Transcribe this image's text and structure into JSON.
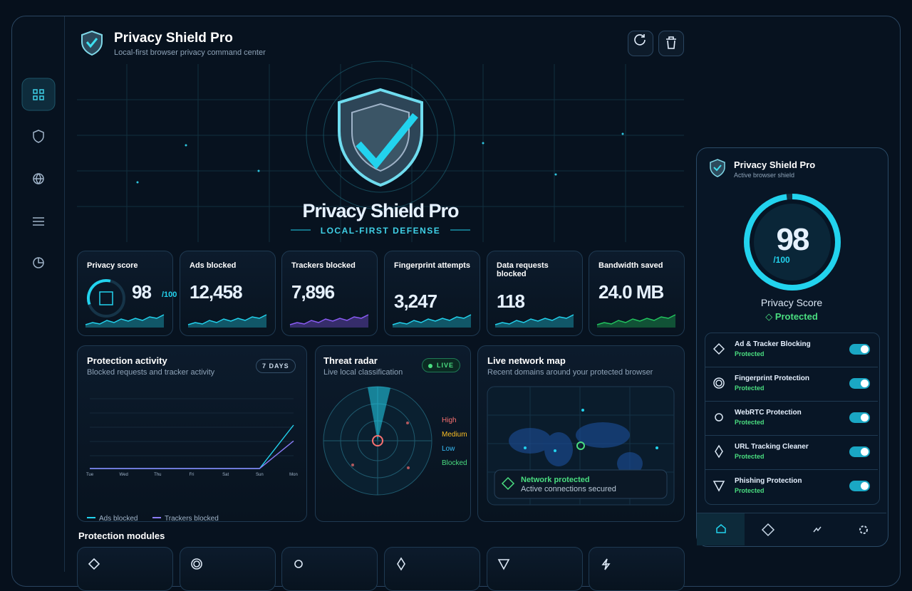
{
  "app": {
    "title": "Privacy Shield Pro",
    "subtitle": "Local-first browser privacy command center"
  },
  "hero": {
    "title": "Privacy Shield Pro",
    "tagline": "LOCAL-FIRST DEFENSE"
  },
  "stats": [
    {
      "label": "Privacy score",
      "value": 98,
      "unit": "/100"
    },
    {
      "label": "Ads blocked",
      "value": "12,458"
    },
    {
      "label": "Trackers blocked",
      "value": "7,896"
    },
    {
      "label": "Fingerprint attempts",
      "value": "3,247"
    },
    {
      "label": "Data requests blocked",
      "value": "118"
    },
    {
      "label": "Bandwidth saved",
      "value": "24.0 MB"
    }
  ],
  "activity": {
    "title": "Protection activity",
    "subtitle": "Blocked requests and tracker activity",
    "range": "7 DAYS",
    "categories": [
      "Tue",
      "Wed",
      "Thu",
      "Fri",
      "Sat",
      "Sun",
      "Mon"
    ],
    "series": [
      {
        "name": "Ads blocked",
        "color": "#22d3ee",
        "values": [
          0,
          0,
          0,
          0,
          0,
          0,
          12458
        ]
      },
      {
        "name": "Trackers blocked",
        "color": "#8b7cf6",
        "values": [
          0,
          0,
          0,
          0,
          0,
          0,
          7896
        ]
      }
    ]
  },
  "radar": {
    "title": "Threat radar",
    "subtitle": "Live local classification",
    "badge": "LIVE",
    "legend": [
      {
        "label": "High",
        "color": "#f87171"
      },
      {
        "label": "Medium",
        "color": "#fbbf24"
      },
      {
        "label": "Low",
        "color": "#38bdf8"
      },
      {
        "label": "Blocked",
        "color": "#4ade80"
      }
    ]
  },
  "network": {
    "title": "Live network map",
    "subtitle": "Recent domains around your protected browser",
    "status": "Network protected",
    "status_detail": "Active connections secured"
  },
  "modules": {
    "title": "Protection modules"
  },
  "popup": {
    "title": "Privacy Shield Pro",
    "subtitle": "Active browser shield",
    "score": 98,
    "score_max": "/100",
    "score_label": "Privacy Score",
    "status": "Protected",
    "items": [
      {
        "name": "Ad & Tracker Blocking",
        "status": "Protected"
      },
      {
        "name": "Fingerprint Protection",
        "status": "Protected"
      },
      {
        "name": "WebRTC Protection",
        "status": "Protected"
      },
      {
        "name": "URL Tracking Cleaner",
        "status": "Protected"
      },
      {
        "name": "Phishing Protection",
        "status": "Protected"
      }
    ]
  }
}
